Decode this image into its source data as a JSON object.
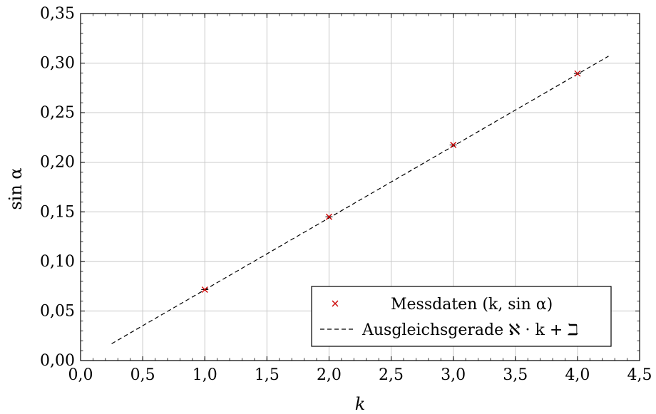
{
  "chart_data": {
    "type": "scatter",
    "xlabel": "k",
    "ylabel": "sin α",
    "xlim": [
      0,
      4.5
    ],
    "ylim": [
      0,
      0.35
    ],
    "x_ticks": [
      "0,0",
      "0,5",
      "1,0",
      "1,5",
      "2,0",
      "2,5",
      "3,0",
      "3,5",
      "4,0",
      "4,5"
    ],
    "y_ticks": [
      "0,00",
      "0,05",
      "0,10",
      "0,15",
      "0,20",
      "0,25",
      "0,30",
      "0,35"
    ],
    "grid": true,
    "legend_position": "bottom-right",
    "series": [
      {
        "name": "Messdaten (k, sin α)",
        "kind": "markers",
        "marker": "x",
        "color": "#cc0000",
        "points": [
          {
            "x": 1.0,
            "y": 0.0715
          },
          {
            "x": 2.0,
            "y": 0.145
          },
          {
            "x": 3.0,
            "y": 0.2175
          },
          {
            "x": 4.0,
            "y": 0.2895
          }
        ]
      },
      {
        "name": "Ausgleichsgerade ℵ · k + ℶ",
        "kind": "dashed-line",
        "color": "#000000",
        "points": [
          {
            "x": 0.25,
            "y": 0.017
          },
          {
            "x": 4.25,
            "y": 0.307
          }
        ]
      }
    ]
  }
}
